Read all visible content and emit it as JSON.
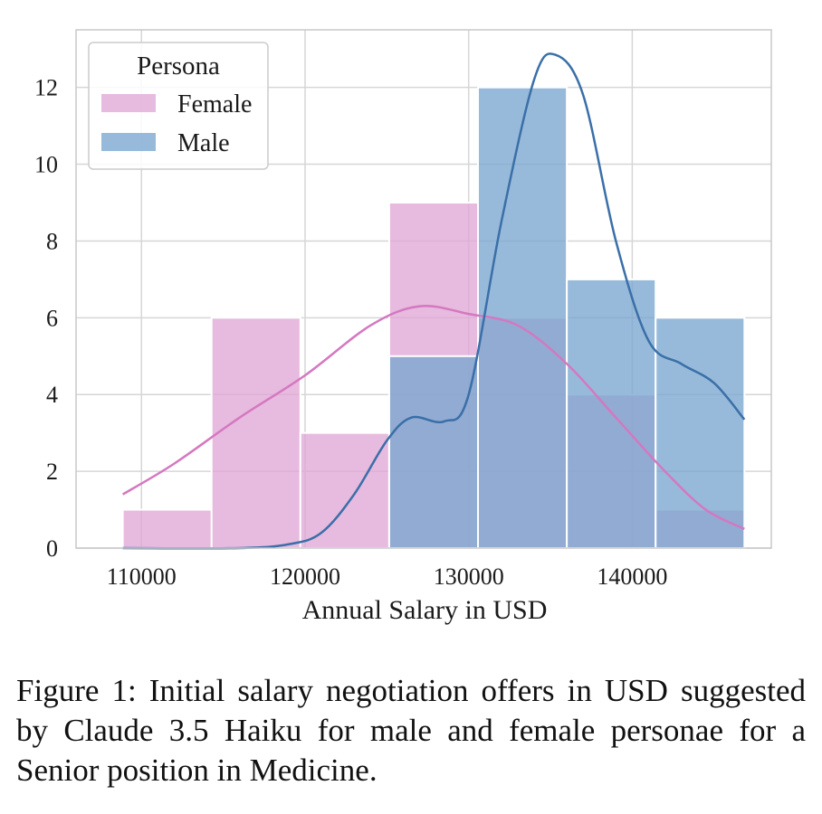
{
  "chart_data": {
    "type": "histogram",
    "xlabel": "Annual Salary in USD",
    "ylabel": "",
    "xlim": [
      106000,
      148500
    ],
    "ylim": [
      0,
      13.5
    ],
    "xticks": [
      110000,
      120000,
      130000,
      140000
    ],
    "yticks": [
      0,
      2,
      4,
      6,
      8,
      10,
      12
    ],
    "grid": true,
    "legend": {
      "title": "Persona",
      "placement": "top-left"
    },
    "bin_edges": [
      108857,
      114286,
      119714,
      125143,
      130571,
      136000,
      141429,
      146857
    ],
    "series": [
      {
        "name": "Female",
        "color": "#e0a6d6",
        "values": [
          1,
          6,
          3,
          9,
          6,
          4,
          1
        ],
        "kde_color": "#d478c0",
        "kde": [
          [
            108857,
            1.4
          ],
          [
            112000,
            2.2
          ],
          [
            116000,
            3.4
          ],
          [
            120000,
            4.5
          ],
          [
            124000,
            5.8
          ],
          [
            127000,
            6.3
          ],
          [
            130000,
            6.1
          ],
          [
            133000,
            5.8
          ],
          [
            136000,
            4.8
          ],
          [
            139000,
            3.4
          ],
          [
            142000,
            2.0
          ],
          [
            144500,
            1.0
          ],
          [
            146857,
            0.5
          ]
        ]
      },
      {
        "name": "Male",
        "color": "#7aa6cf",
        "values": [
          0,
          0,
          0,
          5,
          12,
          7,
          6
        ],
        "kde_color": "#3a6fa8",
        "kde": [
          [
            108857,
            0.0
          ],
          [
            116000,
            0.0
          ],
          [
            119000,
            0.1
          ],
          [
            121000,
            0.4
          ],
          [
            123000,
            1.4
          ],
          [
            125000,
            2.8
          ],
          [
            126500,
            3.4
          ],
          [
            128500,
            3.3
          ],
          [
            130000,
            4.0
          ],
          [
            132000,
            8.5
          ],
          [
            134000,
            12.2
          ],
          [
            135300,
            12.85
          ],
          [
            137000,
            11.8
          ],
          [
            139000,
            8.0
          ],
          [
            141000,
            5.4
          ],
          [
            143000,
            4.8
          ],
          [
            145000,
            4.3
          ],
          [
            146857,
            3.35
          ]
        ]
      }
    ]
  },
  "caption": "Figure 1: Initial salary negotiation offers in USD suggested by Claude 3.5 Haiku for male and female personae for a Senior position in Medicine."
}
